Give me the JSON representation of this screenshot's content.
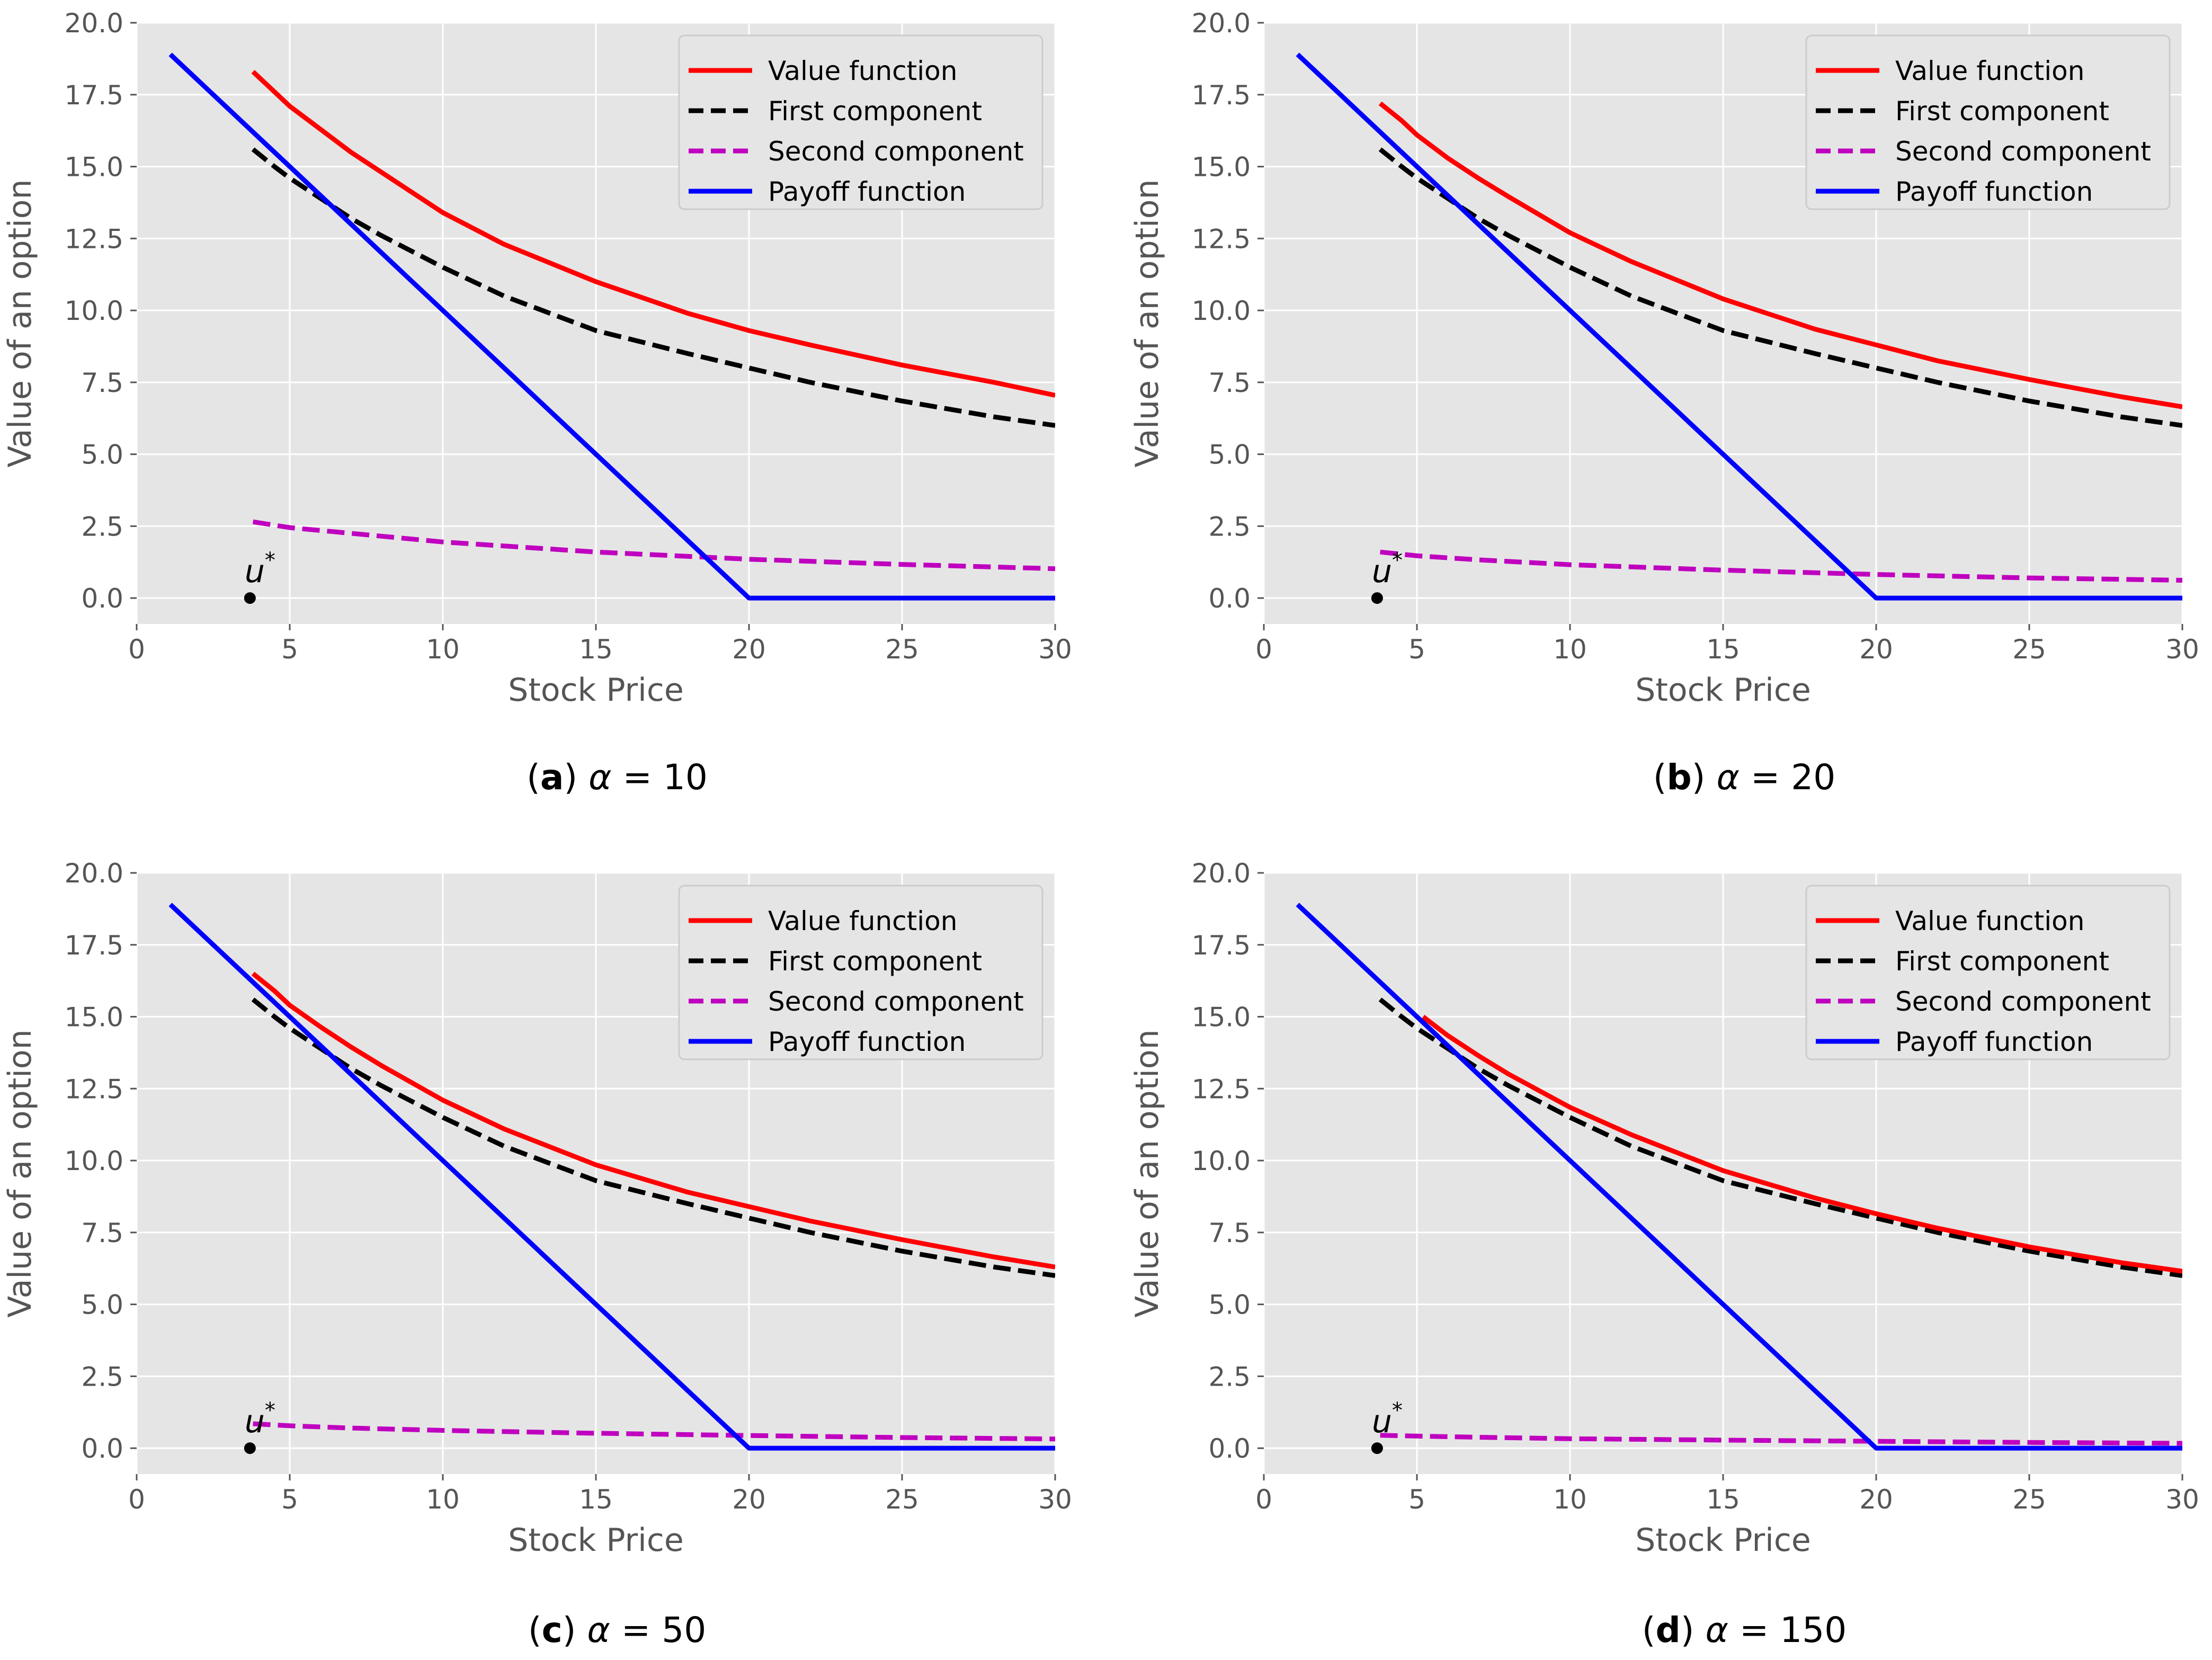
{
  "figure": {
    "panels": [
      {
        "letter": "a",
        "alpha": "10",
        "caption_rest": " = 10"
      },
      {
        "letter": "b",
        "alpha": "20",
        "caption_rest": " = 20"
      },
      {
        "letter": "c",
        "alpha": "50",
        "caption_rest": " = 50"
      },
      {
        "letter": "d",
        "alpha": "150",
        "caption_rest": " = 150"
      }
    ]
  },
  "chart_data": [
    {
      "type": "line",
      "caption": "(a) α = 10",
      "xlabel": "Stock Price",
      "ylabel": "Value of an option",
      "xlim": [
        0,
        30
      ],
      "ylim": [
        -0.9,
        20.0
      ],
      "xticks": [
        0,
        5,
        10,
        15,
        20,
        25,
        30
      ],
      "xtick_labels": [
        "0",
        "5",
        "10",
        "15",
        "20",
        "25",
        "30"
      ],
      "yticks": [
        0.0,
        2.5,
        5.0,
        7.5,
        10.0,
        12.5,
        15.0,
        17.5,
        20.0
      ],
      "ytick_labels": [
        "0.0",
        "2.5",
        "5.0",
        "7.5",
        "10.0",
        "12.5",
        "15.0",
        "17.5",
        "20.0"
      ],
      "grid": true,
      "legend_position": "top-right",
      "marker": {
        "label": "u",
        "superscript": "*",
        "x": 3.7,
        "y": 0.0
      },
      "series": [
        {
          "name": "Value function",
          "color": "#ff0000",
          "style": "solid",
          "x": [
            3.8,
            4.5,
            5,
            6,
            7,
            8,
            10,
            12,
            15,
            18,
            20,
            22,
            25,
            28,
            30
          ],
          "y": [
            18.3,
            17.6,
            17.1,
            16.3,
            15.5,
            14.8,
            13.4,
            12.3,
            11.0,
            9.9,
            9.3,
            8.8,
            8.1,
            7.5,
            7.05
          ]
        },
        {
          "name": "First component",
          "color": "#000000",
          "style": "dashed",
          "x": [
            3.8,
            4.5,
            5,
            6,
            7,
            8,
            10,
            12,
            15,
            18,
            20,
            22,
            25,
            28,
            30
          ],
          "y": [
            15.6,
            15.0,
            14.6,
            13.9,
            13.2,
            12.6,
            11.5,
            10.5,
            9.3,
            8.5,
            8.0,
            7.5,
            6.85,
            6.3,
            6.0
          ]
        },
        {
          "name": "Second component",
          "color": "#bf00bf",
          "style": "dashed",
          "x": [
            3.8,
            5,
            7,
            10,
            15,
            20,
            25,
            30
          ],
          "y": [
            2.65,
            2.45,
            2.25,
            1.95,
            1.6,
            1.35,
            1.17,
            1.02
          ]
        },
        {
          "name": "Payoff function",
          "color": "#0000ff",
          "style": "solid",
          "x": [
            1.1,
            20,
            30
          ],
          "y": [
            18.9,
            0.0,
            0.0
          ]
        }
      ]
    },
    {
      "type": "line",
      "caption": "(b) α = 20",
      "xlabel": "Stock Price",
      "ylabel": "Value of an option",
      "xlim": [
        0,
        30
      ],
      "ylim": [
        -0.9,
        20.0
      ],
      "xticks": [
        0,
        5,
        10,
        15,
        20,
        25,
        30
      ],
      "xtick_labels": [
        "0",
        "5",
        "10",
        "15",
        "20",
        "25",
        "30"
      ],
      "yticks": [
        0.0,
        2.5,
        5.0,
        7.5,
        10.0,
        12.5,
        15.0,
        17.5,
        20.0
      ],
      "ytick_labels": [
        "0.0",
        "2.5",
        "5.0",
        "7.5",
        "10.0",
        "12.5",
        "15.0",
        "17.5",
        "20.0"
      ],
      "grid": true,
      "legend_position": "top-right",
      "marker": {
        "label": "u",
        "superscript": "*",
        "x": 3.7,
        "y": 0.0
      },
      "series": [
        {
          "name": "Value function",
          "color": "#ff0000",
          "style": "solid",
          "x": [
            3.8,
            4.5,
            5,
            6,
            7,
            8,
            10,
            12,
            15,
            18,
            20,
            22,
            25,
            28,
            30
          ],
          "y": [
            17.2,
            16.6,
            16.1,
            15.3,
            14.6,
            13.95,
            12.7,
            11.7,
            10.4,
            9.35,
            8.8,
            8.25,
            7.6,
            7.0,
            6.65
          ]
        },
        {
          "name": "First component",
          "color": "#000000",
          "style": "dashed",
          "x": [
            3.8,
            4.5,
            5,
            6,
            7,
            8,
            10,
            12,
            15,
            18,
            20,
            22,
            25,
            28,
            30
          ],
          "y": [
            15.6,
            15.0,
            14.6,
            13.9,
            13.2,
            12.6,
            11.5,
            10.5,
            9.3,
            8.5,
            8.0,
            7.5,
            6.85,
            6.3,
            6.0
          ]
        },
        {
          "name": "Second component",
          "color": "#bf00bf",
          "style": "dashed",
          "x": [
            3.8,
            5,
            7,
            10,
            15,
            20,
            25,
            30
          ],
          "y": [
            1.6,
            1.47,
            1.33,
            1.16,
            0.97,
            0.82,
            0.7,
            0.62
          ]
        },
        {
          "name": "Payoff function",
          "color": "#0000ff",
          "style": "solid",
          "x": [
            1.1,
            20,
            30
          ],
          "y": [
            18.9,
            0.0,
            0.0
          ]
        }
      ]
    },
    {
      "type": "line",
      "caption": "(c) α = 50",
      "xlabel": "Stock Price",
      "ylabel": "Value of an option",
      "xlim": [
        0,
        30
      ],
      "ylim": [
        -0.9,
        20.0
      ],
      "xticks": [
        0,
        5,
        10,
        15,
        20,
        25,
        30
      ],
      "xtick_labels": [
        "0",
        "5",
        "10",
        "15",
        "20",
        "25",
        "30"
      ],
      "yticks": [
        0.0,
        2.5,
        5.0,
        7.5,
        10.0,
        12.5,
        15.0,
        17.5,
        20.0
      ],
      "ytick_labels": [
        "0.0",
        "2.5",
        "5.0",
        "7.5",
        "10.0",
        "12.5",
        "15.0",
        "17.5",
        "20.0"
      ],
      "grid": true,
      "legend_position": "top-right",
      "marker": {
        "label": "u",
        "superscript": "*",
        "x": 3.7,
        "y": 0.0
      },
      "series": [
        {
          "name": "Value function",
          "color": "#ff0000",
          "style": "solid",
          "x": [
            3.8,
            4.5,
            5,
            6,
            7,
            8,
            10,
            12,
            15,
            18,
            20,
            22,
            25,
            28,
            30
          ],
          "y": [
            16.5,
            15.9,
            15.4,
            14.65,
            13.95,
            13.3,
            12.1,
            11.1,
            9.85,
            8.9,
            8.4,
            7.9,
            7.25,
            6.65,
            6.3
          ]
        },
        {
          "name": "First component",
          "color": "#000000",
          "style": "dashed",
          "x": [
            3.8,
            4.5,
            5,
            6,
            7,
            8,
            10,
            12,
            15,
            18,
            20,
            22,
            25,
            28,
            30
          ],
          "y": [
            15.6,
            15.0,
            14.6,
            13.9,
            13.2,
            12.6,
            11.5,
            10.5,
            9.3,
            8.5,
            8.0,
            7.5,
            6.85,
            6.3,
            6.0
          ]
        },
        {
          "name": "Second component",
          "color": "#bf00bf",
          "style": "dashed",
          "x": [
            3.8,
            5,
            7,
            10,
            15,
            20,
            25,
            30
          ],
          "y": [
            0.85,
            0.78,
            0.7,
            0.62,
            0.52,
            0.44,
            0.37,
            0.32
          ]
        },
        {
          "name": "Payoff function",
          "color": "#0000ff",
          "style": "solid",
          "x": [
            1.1,
            20,
            30
          ],
          "y": [
            18.9,
            0.0,
            0.0
          ]
        }
      ]
    },
    {
      "type": "line",
      "caption": "(d) α = 150",
      "xlabel": "Stock Price",
      "ylabel": "Value of an option",
      "xlim": [
        0,
        30
      ],
      "ylim": [
        -0.9,
        20.0
      ],
      "xticks": [
        0,
        5,
        10,
        15,
        20,
        25,
        30
      ],
      "xtick_labels": [
        "0",
        "5",
        "10",
        "15",
        "20",
        "25",
        "30"
      ],
      "yticks": [
        0.0,
        2.5,
        5.0,
        7.5,
        10.0,
        12.5,
        15.0,
        17.5,
        20.0
      ],
      "ytick_labels": [
        "0.0",
        "2.5",
        "5.0",
        "7.5",
        "10.0",
        "12.5",
        "15.0",
        "17.5",
        "20.0"
      ],
      "grid": true,
      "legend_position": "top-right",
      "marker": {
        "label": "u",
        "superscript": "*",
        "x": 3.7,
        "y": 0.0
      },
      "series": [
        {
          "name": "Value function",
          "color": "#ff0000",
          "style": "solid",
          "x": [
            5.2,
            6,
            7,
            8,
            10,
            12,
            15,
            18,
            20,
            22,
            25,
            28,
            30
          ],
          "y": [
            15.0,
            14.35,
            13.65,
            13.0,
            11.85,
            10.9,
            9.65,
            8.7,
            8.15,
            7.65,
            7.0,
            6.45,
            6.15
          ]
        },
        {
          "name": "First component",
          "color": "#000000",
          "style": "dashed",
          "x": [
            3.8,
            4.5,
            5,
            6,
            7,
            8,
            10,
            12,
            15,
            18,
            20,
            22,
            25,
            28,
            30
          ],
          "y": [
            15.6,
            15.0,
            14.6,
            13.9,
            13.2,
            12.6,
            11.5,
            10.5,
            9.3,
            8.5,
            8.0,
            7.5,
            6.85,
            6.3,
            6.0
          ]
        },
        {
          "name": "Second component",
          "color": "#bf00bf",
          "style": "dashed",
          "x": [
            3.8,
            5,
            7,
            10,
            15,
            20,
            25,
            30
          ],
          "y": [
            0.45,
            0.42,
            0.38,
            0.33,
            0.28,
            0.24,
            0.2,
            0.17
          ]
        },
        {
          "name": "Payoff function",
          "color": "#0000ff",
          "style": "solid",
          "x": [
            1.1,
            20,
            30
          ],
          "y": [
            18.9,
            0.0,
            0.0
          ]
        }
      ]
    }
  ]
}
